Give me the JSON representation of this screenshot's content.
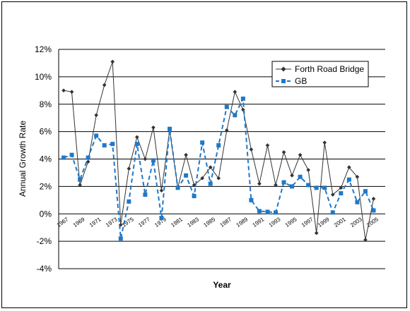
{
  "chart_data": {
    "type": "line",
    "title": "",
    "xlabel": "Year",
    "ylabel": "Annual Growth Rate",
    "ylim": [
      -4,
      12
    ],
    "y_ticks": [
      "-4%",
      "-2%",
      "0%",
      "2%",
      "4%",
      "6%",
      "8%",
      "10%",
      "12%"
    ],
    "x_tick_labels": [
      "1967",
      "1969",
      "1971",
      "1973",
      "1975",
      "1977",
      "1979",
      "1981",
      "1983",
      "1985",
      "1987",
      "1989",
      "1991",
      "1993",
      "1995",
      "1997",
      "1999",
      "2001",
      "2003",
      "2005"
    ],
    "grid": true,
    "legend_position": "top-right",
    "x": [
      1967,
      1968,
      1969,
      1970,
      1971,
      1972,
      1973,
      1974,
      1975,
      1976,
      1977,
      1978,
      1979,
      1980,
      1981,
      1982,
      1983,
      1984,
      1985,
      1986,
      1987,
      1988,
      1989,
      1990,
      1991,
      1992,
      1993,
      1994,
      1995,
      1996,
      1997,
      1998,
      1999,
      2000,
      2001,
      2002,
      2003,
      2004,
      2005,
      2006
    ],
    "series": [
      {
        "name": "Forth Road Bridge",
        "color": "#333333",
        "marker": "diamond",
        "values": [
          9.0,
          8.9,
          2.1,
          3.8,
          7.2,
          9.4,
          11.1,
          -0.8,
          3.3,
          5.6,
          4.0,
          6.3,
          1.7,
          6.1,
          1.9,
          4.3,
          2.1,
          2.6,
          3.4,
          2.6,
          6.1,
          8.9,
          7.6,
          4.7,
          2.2,
          5.0,
          2.1,
          4.5,
          2.8,
          4.3,
          3.2,
          -1.4,
          5.2,
          1.4,
          1.9,
          3.4,
          2.7,
          -1.9,
          1.1,
          null
        ]
      },
      {
        "name": "GB",
        "color": "#1f78c8",
        "marker": "square",
        "values": [
          4.1,
          4.3,
          2.5,
          4.1,
          5.7,
          5.0,
          5.1,
          -1.8,
          0.9,
          5.1,
          1.4,
          3.9,
          -0.3,
          6.2,
          1.9,
          2.8,
          1.3,
          5.2,
          2.2,
          5.0,
          7.8,
          7.2,
          8.4,
          1.0,
          0.2,
          0.15,
          0.1,
          2.3,
          2.0,
          2.7,
          2.1,
          1.9,
          1.9,
          0.1,
          1.5,
          2.5,
          0.85,
          1.65,
          0.25,
          null
        ]
      }
    ]
  }
}
